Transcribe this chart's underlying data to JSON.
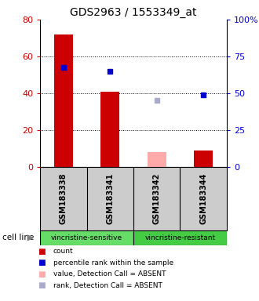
{
  "title": "GDS2963 / 1553349_at",
  "samples": [
    "GSM183338",
    "GSM183341",
    "GSM183342",
    "GSM183344"
  ],
  "groups": [
    {
      "label": "vincristine-sensitive",
      "samples": [
        0,
        1
      ],
      "color": "#66dd66"
    },
    {
      "label": "vincristine-resistant",
      "samples": [
        2,
        3
      ],
      "color": "#44cc44"
    }
  ],
  "bar_values": [
    72,
    41,
    8,
    9
  ],
  "bar_colors": [
    "#cc0000",
    "#cc0000",
    "#ffaaaa",
    "#cc0000"
  ],
  "dot_present_values": [
    54,
    52,
    null,
    39
  ],
  "dot_present_colors": [
    "#0000cc",
    "#0000cc",
    null,
    "#0000cc"
  ],
  "dot_absent_rank_values": [
    null,
    null,
    36,
    null
  ],
  "dot_absent_rank_colors": [
    null,
    null,
    "#aaaacc",
    null
  ],
  "ylim_left": [
    0,
    80
  ],
  "ylim_right": [
    0,
    100
  ],
  "yticks_left": [
    0,
    20,
    40,
    60,
    80
  ],
  "yticks_right": [
    0,
    25,
    50,
    75,
    100
  ],
  "ytick_labels_right": [
    "0",
    "25",
    "50",
    "75",
    "100%"
  ],
  "left_axis_color": "#cc0000",
  "right_axis_color": "#0000cc",
  "bar_width": 0.4,
  "figsize": [
    3.3,
    3.84
  ],
  "dpi": 100,
  "background_color": "#ffffff",
  "sample_label_bg": "#cccccc",
  "legend_items": [
    {
      "color": "#cc0000",
      "label": "count"
    },
    {
      "color": "#0000cc",
      "label": "percentile rank within the sample"
    },
    {
      "color": "#ffaaaa",
      "label": "value, Detection Call = ABSENT"
    },
    {
      "color": "#aaaacc",
      "label": "rank, Detection Call = ABSENT"
    }
  ]
}
